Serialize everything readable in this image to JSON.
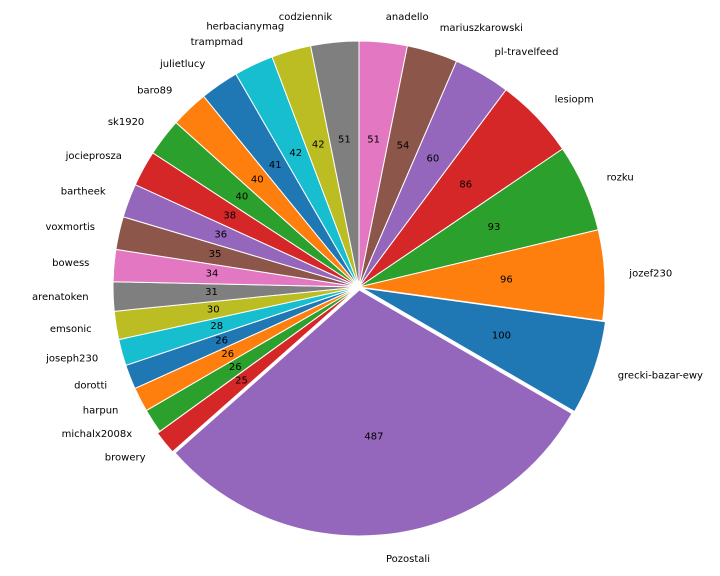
{
  "chart_data": {
    "type": "pie",
    "title": "",
    "legend": "none",
    "start_angle_deg": 90,
    "direction": "clockwise",
    "categories": [
      "anadello",
      "mariuszkarowski",
      "pl-travelfeed",
      "lesiopm",
      "rozku",
      "jozef230",
      "grecki-bazar-ewy",
      "Pozostali",
      "browery",
      "michalx2008x",
      "harpun",
      "dorotti",
      "joseph230",
      "emsonic",
      "arenatoken",
      "bowess",
      "voxmortis",
      "bartheek",
      "jocieprosza",
      "sk1920",
      "baro89",
      "julietlucy",
      "trampmad",
      "herbacianymag",
      "codziennik"
    ],
    "values": [
      51,
      54,
      60,
      86,
      93,
      96,
      100,
      487,
      25,
      26,
      26,
      26,
      28,
      30,
      31,
      34,
      35,
      36,
      38,
      40,
      40,
      41,
      42,
      42,
      51
    ],
    "value_labels": [
      "51",
      "54",
      "60",
      "86",
      "93",
      "96",
      "100",
      "487",
      "25",
      "26",
      "26",
      "26",
      "28",
      "30",
      "31",
      "34",
      "35",
      "36",
      "38",
      "40",
      "40",
      "41",
      "42",
      "42",
      "51"
    ],
    "colors": [
      "#e377c2",
      "#8c564b",
      "#9467bd",
      "#d62728",
      "#2ca02c",
      "#ff7f0e",
      "#1f77b4",
      "#9467bd",
      "#d62728",
      "#2ca02c",
      "#ff7f0e",
      "#1f77b4",
      "#17becf",
      "#bcbd22",
      "#7f7f7f",
      "#e377c2",
      "#8c564b",
      "#9467bd",
      "#d62728",
      "#2ca02c",
      "#ff7f0e",
      "#1f77b4",
      "#17becf",
      "#bcbd22",
      "#7f7f7f"
    ],
    "exploded": [
      "grecki-bazar-ewy",
      "Pozostali",
      "browery"
    ]
  }
}
